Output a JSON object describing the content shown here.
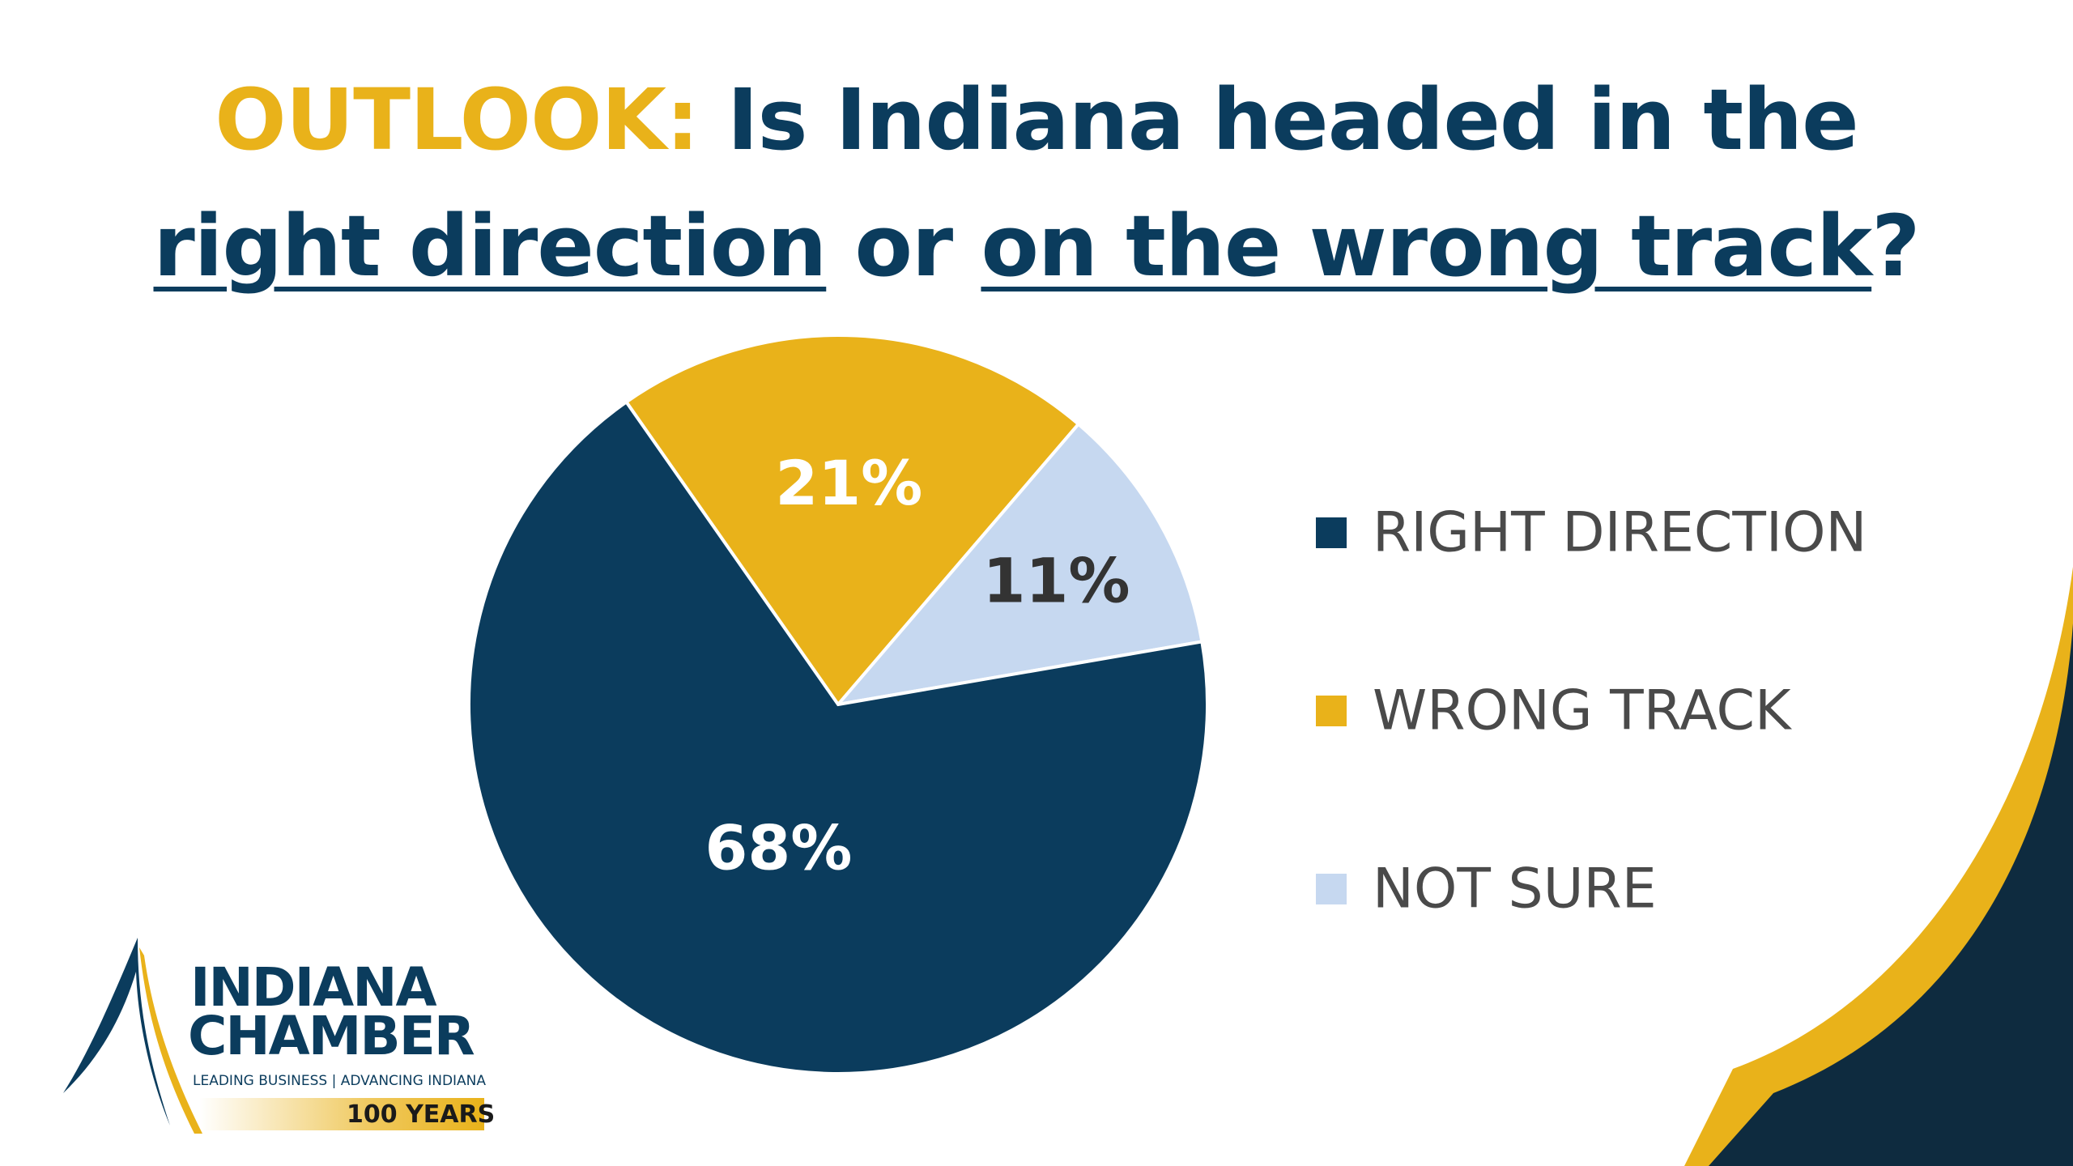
{
  "title": {
    "prefix": "OUTLOOK:",
    "line1": "Is Indiana headed in the",
    "right_direction": "right direction",
    "or": "or",
    "wrong_track": "on the wrong track",
    "qmark": "?"
  },
  "colors": {
    "navy": "#0b3c5d",
    "gold": "#e9b21a",
    "light_blue": "#c6d8f0",
    "corner_dark": "#0e2b3f"
  },
  "chart_data": {
    "type": "pie",
    "title": "OUTLOOK: Is Indiana headed in the right direction or on the wrong track?",
    "labels": [
      "RIGHT DIRECTION",
      "WRONG TRACK",
      "NOT SURE"
    ],
    "values": [
      68,
      21,
      11
    ],
    "value_labels": [
      "68%",
      "21%",
      "11%"
    ],
    "colors": [
      "#0b3c5d",
      "#e9b21a",
      "#c6d8f0"
    ],
    "label_colors": [
      "#ffffff",
      "#ffffff",
      "#333333"
    ],
    "legend_position": "right"
  },
  "logo": {
    "line1": "INDIANA",
    "line2": "CHAMBER",
    "tagline": "LEADING BUSINESS | ADVANCING INDIANA",
    "years": "100 YEARS"
  }
}
